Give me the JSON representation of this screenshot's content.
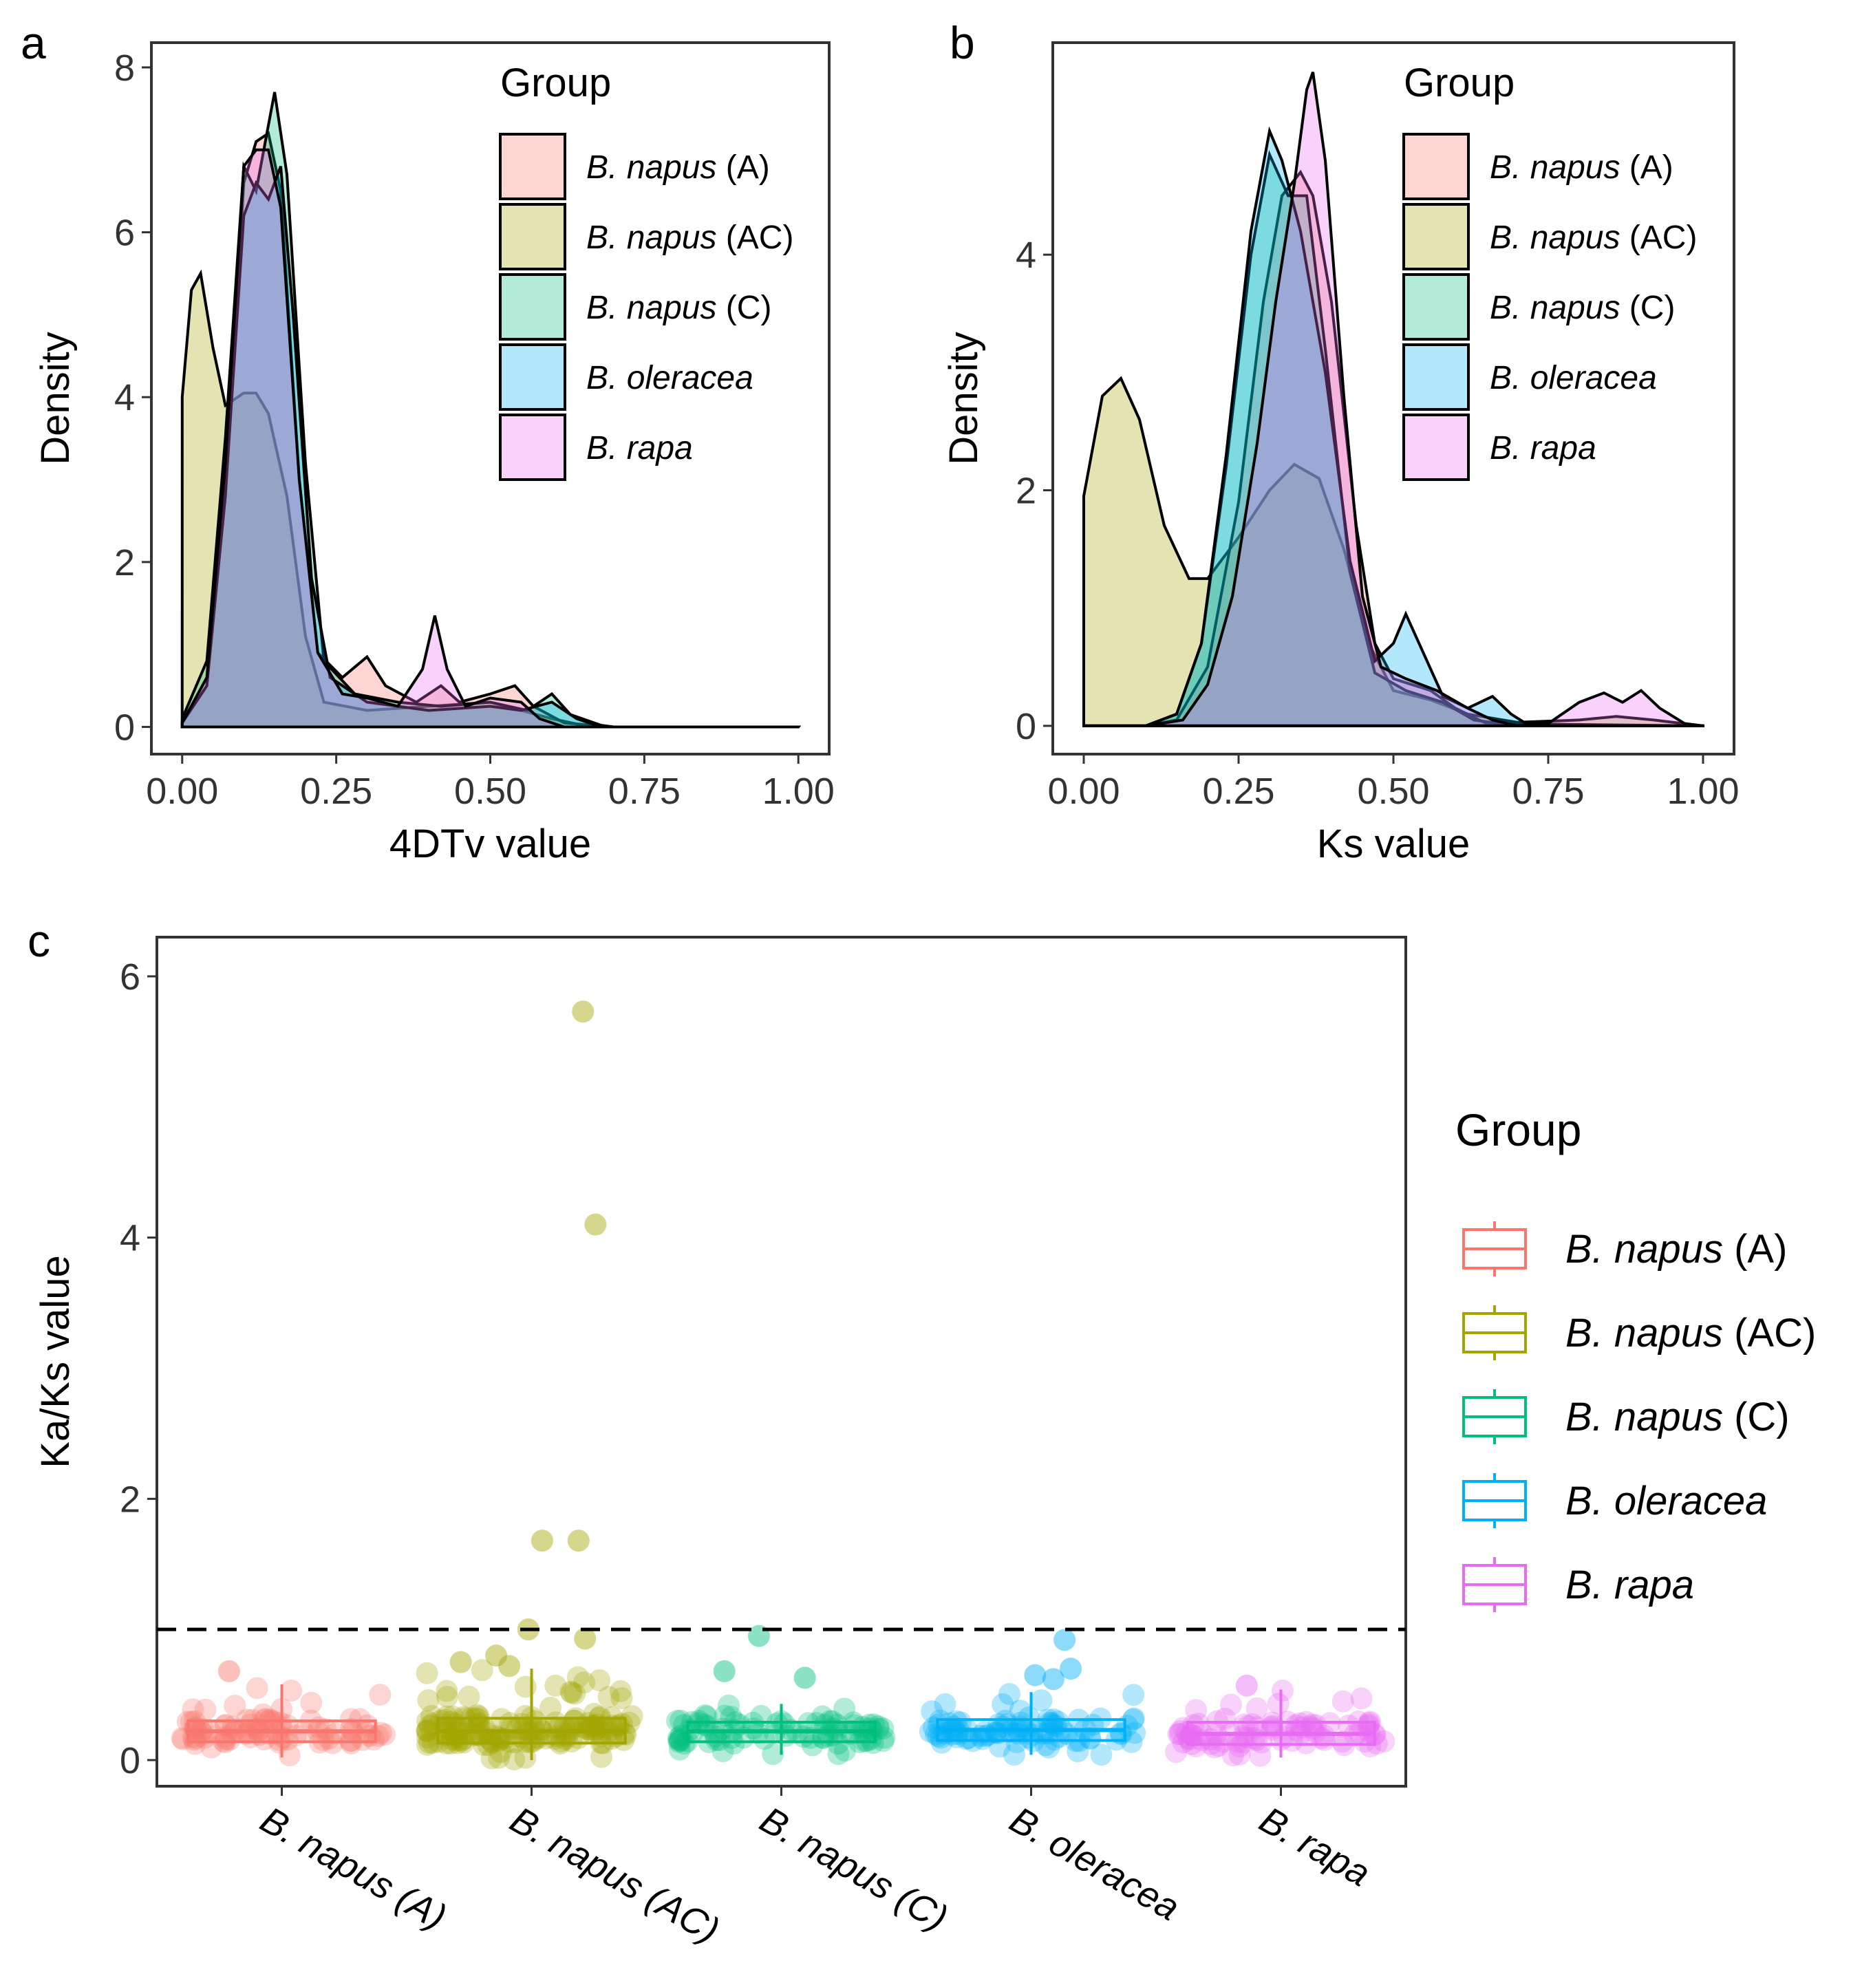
{
  "colors": {
    "B. napus (A)": "#F8766D",
    "B. napus (AC)": "#A3A500",
    "B. napus (C)": "#00BF7D",
    "B. oleracea": "#00B0F6",
    "B. rapa": "#E76BF3"
  },
  "panel_labels": {
    "a": "a",
    "b": "b",
    "c": "c"
  },
  "legend": {
    "title": "Group",
    "items": [
      {
        "group": "B. napus (A)",
        "genus": "B.",
        "species": "napus",
        "suffix": " (A)"
      },
      {
        "group": "B. napus (AC)",
        "genus": "B.",
        "species": "napus",
        "suffix": " (AC)"
      },
      {
        "group": "B. napus (C)",
        "genus": "B.",
        "species": "napus",
        "suffix": " (C)"
      },
      {
        "group": "B. oleracea",
        "genus": "B.",
        "species": "oleracea",
        "suffix": ""
      },
      {
        "group": "B. rapa",
        "genus": "B.",
        "species": "rapa",
        "suffix": ""
      }
    ]
  },
  "chart_data": [
    {
      "id": "a",
      "type": "area",
      "subtype": "density",
      "xlabel": "4DTv value",
      "ylabel": "Density",
      "xlim": [
        0,
        1
      ],
      "ylim": [
        0,
        8
      ],
      "xticks": [
        "0.00",
        "0.25",
        "0.50",
        "0.75",
        "1.00"
      ],
      "yticks": [
        "0",
        "2",
        "4",
        "6",
        "8"
      ],
      "legend": "top-right",
      "series": [
        {
          "name": "B. napus (AC)",
          "points": [
            [
              0,
              4.0
            ],
            [
              0.015,
              5.3
            ],
            [
              0.03,
              5.5
            ],
            [
              0.05,
              4.6
            ],
            [
              0.07,
              3.9
            ],
            [
              0.1,
              4.05
            ],
            [
              0.12,
              4.05
            ],
            [
              0.14,
              3.8
            ],
            [
              0.17,
              2.8
            ],
            [
              0.2,
              1.1
            ],
            [
              0.23,
              0.3
            ],
            [
              0.3,
              0.2
            ],
            [
              0.4,
              0.25
            ],
            [
              0.5,
              0.3
            ],
            [
              0.6,
              0.1
            ],
            [
              0.65,
              0.02
            ],
            [
              0.7,
              0
            ],
            [
              1.0,
              0
            ]
          ]
        },
        {
          "name": "B. napus (A)",
          "points": [
            [
              0,
              0.05
            ],
            [
              0.04,
              0.5
            ],
            [
              0.07,
              2.8
            ],
            [
              0.1,
              6.6
            ],
            [
              0.12,
              7.1
            ],
            [
              0.14,
              7.2
            ],
            [
              0.16,
              6.5
            ],
            [
              0.19,
              3.0
            ],
            [
              0.22,
              0.9
            ],
            [
              0.26,
              0.6
            ],
            [
              0.3,
              0.85
            ],
            [
              0.33,
              0.5
            ],
            [
              0.38,
              0.3
            ],
            [
              0.42,
              0.5
            ],
            [
              0.45,
              0.3
            ],
            [
              0.5,
              0.4
            ],
            [
              0.54,
              0.5
            ],
            [
              0.57,
              0.25
            ],
            [
              0.62,
              0.05
            ],
            [
              0.7,
              0
            ],
            [
              1.0,
              0
            ]
          ]
        },
        {
          "name": "B. napus (C)",
          "points": [
            [
              0,
              0.1
            ],
            [
              0.04,
              0.8
            ],
            [
              0.07,
              3.5
            ],
            [
              0.1,
              6.8
            ],
            [
              0.12,
              6.5
            ],
            [
              0.14,
              7.3
            ],
            [
              0.15,
              7.7
            ],
            [
              0.17,
              6.7
            ],
            [
              0.2,
              3.2
            ],
            [
              0.23,
              0.8
            ],
            [
              0.28,
              0.4
            ],
            [
              0.35,
              0.3
            ],
            [
              0.42,
              0.25
            ],
            [
              0.5,
              0.3
            ],
            [
              0.56,
              0.2
            ],
            [
              0.6,
              0.4
            ],
            [
              0.63,
              0.15
            ],
            [
              0.68,
              0.02
            ],
            [
              0.7,
              0
            ],
            [
              1.0,
              0
            ]
          ]
        },
        {
          "name": "B. oleracea",
          "points": [
            [
              0,
              0.05
            ],
            [
              0.04,
              0.5
            ],
            [
              0.07,
              2.8
            ],
            [
              0.1,
              6.2
            ],
            [
              0.12,
              6.6
            ],
            [
              0.14,
              6.4
            ],
            [
              0.16,
              6.8
            ],
            [
              0.18,
              5.0
            ],
            [
              0.21,
              1.8
            ],
            [
              0.24,
              0.6
            ],
            [
              0.3,
              0.3
            ],
            [
              0.4,
              0.2
            ],
            [
              0.5,
              0.25
            ],
            [
              0.55,
              0.2
            ],
            [
              0.6,
              0.3
            ],
            [
              0.64,
              0.1
            ],
            [
              0.68,
              0
            ],
            [
              1.0,
              0
            ]
          ]
        },
        {
          "name": "B. rapa",
          "points": [
            [
              0,
              0.05
            ],
            [
              0.04,
              0.6
            ],
            [
              0.07,
              3.2
            ],
            [
              0.1,
              6.8
            ],
            [
              0.12,
              7.0
            ],
            [
              0.14,
              7.0
            ],
            [
              0.16,
              6.3
            ],
            [
              0.19,
              3.0
            ],
            [
              0.22,
              0.9
            ],
            [
              0.26,
              0.4
            ],
            [
              0.3,
              0.35
            ],
            [
              0.35,
              0.25
            ],
            [
              0.39,
              0.7
            ],
            [
              0.41,
              1.35
            ],
            [
              0.43,
              0.7
            ],
            [
              0.46,
              0.25
            ],
            [
              0.5,
              0.35
            ],
            [
              0.55,
              0.3
            ],
            [
              0.58,
              0.1
            ],
            [
              0.62,
              0
            ],
            [
              1.0,
              0
            ]
          ]
        }
      ]
    },
    {
      "id": "b",
      "type": "area",
      "subtype": "density",
      "xlabel": "Ks value",
      "ylabel": "Density",
      "xlim": [
        0,
        1
      ],
      "ylim": [
        0,
        5.8
      ],
      "xticks": [
        "0.00",
        "0.25",
        "0.50",
        "0.75",
        "1.00"
      ],
      "yticks": [
        "0",
        "2",
        "4"
      ],
      "ytick_values": [
        0,
        2,
        4
      ],
      "legend": "top-right",
      "series": [
        {
          "name": "B. napus (AC)",
          "points": [
            [
              0,
              1.95
            ],
            [
              0.03,
              2.8
            ],
            [
              0.06,
              2.95
            ],
            [
              0.09,
              2.6
            ],
            [
              0.13,
              1.7
            ],
            [
              0.17,
              1.25
            ],
            [
              0.2,
              1.25
            ],
            [
              0.25,
              1.6
            ],
            [
              0.3,
              2.0
            ],
            [
              0.34,
              2.22
            ],
            [
              0.38,
              2.1
            ],
            [
              0.42,
              1.5
            ],
            [
              0.46,
              0.7
            ],
            [
              0.5,
              0.3
            ],
            [
              0.56,
              0.22
            ],
            [
              0.62,
              0.1
            ],
            [
              0.7,
              0.03
            ],
            [
              0.8,
              0.05
            ],
            [
              0.86,
              0.08
            ],
            [
              0.92,
              0.05
            ],
            [
              1.0,
              0
            ]
          ]
        },
        {
          "name": "B. napus (A)",
          "points": [
            [
              0,
              0
            ],
            [
              0.1,
              0
            ],
            [
              0.15,
              0.05
            ],
            [
              0.2,
              0.5
            ],
            [
              0.25,
              1.9
            ],
            [
              0.29,
              3.6
            ],
            [
              0.32,
              4.5
            ],
            [
              0.35,
              4.7
            ],
            [
              0.37,
              4.5
            ],
            [
              0.4,
              3.6
            ],
            [
              0.44,
              1.7
            ],
            [
              0.47,
              0.7
            ],
            [
              0.5,
              0.4
            ],
            [
              0.56,
              0.3
            ],
            [
              0.6,
              0.15
            ],
            [
              0.65,
              0.02
            ],
            [
              1.0,
              0
            ]
          ]
        },
        {
          "name": "B. napus (C)",
          "points": [
            [
              0,
              0
            ],
            [
              0.1,
              0
            ],
            [
              0.15,
              0.1
            ],
            [
              0.19,
              0.7
            ],
            [
              0.23,
              2.2
            ],
            [
              0.27,
              4.0
            ],
            [
              0.3,
              4.85
            ],
            [
              0.33,
              4.5
            ],
            [
              0.36,
              4.5
            ],
            [
              0.39,
              3.2
            ],
            [
              0.43,
              1.3
            ],
            [
              0.47,
              0.45
            ],
            [
              0.52,
              0.3
            ],
            [
              0.58,
              0.2
            ],
            [
              0.63,
              0.05
            ],
            [
              0.7,
              0
            ],
            [
              1.0,
              0
            ]
          ]
        },
        {
          "name": "B. oleracea",
          "points": [
            [
              0,
              0
            ],
            [
              0.1,
              0
            ],
            [
              0.15,
              0.1
            ],
            [
              0.19,
              0.7
            ],
            [
              0.23,
              2.3
            ],
            [
              0.27,
              4.2
            ],
            [
              0.3,
              5.05
            ],
            [
              0.32,
              4.8
            ],
            [
              0.35,
              4.2
            ],
            [
              0.39,
              3.0
            ],
            [
              0.43,
              1.4
            ],
            [
              0.47,
              0.55
            ],
            [
              0.5,
              0.7
            ],
            [
              0.52,
              0.95
            ],
            [
              0.55,
              0.6
            ],
            [
              0.58,
              0.25
            ],
            [
              0.62,
              0.15
            ],
            [
              0.66,
              0.25
            ],
            [
              0.69,
              0.1
            ],
            [
              0.72,
              0
            ],
            [
              1.0,
              0
            ]
          ]
        },
        {
          "name": "B. rapa",
          "points": [
            [
              0,
              0
            ],
            [
              0.1,
              0
            ],
            [
              0.16,
              0.05
            ],
            [
              0.2,
              0.35
            ],
            [
              0.24,
              1.1
            ],
            [
              0.28,
              2.4
            ],
            [
              0.31,
              3.6
            ],
            [
              0.34,
              4.6
            ],
            [
              0.36,
              5.4
            ],
            [
              0.37,
              5.55
            ],
            [
              0.39,
              4.8
            ],
            [
              0.42,
              2.8
            ],
            [
              0.45,
              1.1
            ],
            [
              0.48,
              0.5
            ],
            [
              0.52,
              0.4
            ],
            [
              0.57,
              0.3
            ],
            [
              0.62,
              0.15
            ],
            [
              0.66,
              0.05
            ],
            [
              0.7,
              0
            ],
            [
              0.75,
              0.02
            ],
            [
              0.8,
              0.2
            ],
            [
              0.84,
              0.28
            ],
            [
              0.87,
              0.2
            ],
            [
              0.9,
              0.3
            ],
            [
              0.93,
              0.15
            ],
            [
              0.97,
              0.02
            ],
            [
              1.0,
              0
            ]
          ]
        }
      ]
    },
    {
      "id": "c",
      "type": "box",
      "xlabel": "",
      "ylabel": "Ka/Ks value",
      "ylim": [
        -0.2,
        6.3
      ],
      "yticks": [
        "0",
        "2",
        "4",
        "6"
      ],
      "ytick_values": [
        0,
        2,
        4,
        6
      ],
      "reference_line": {
        "y": 1.0,
        "style": "dashed"
      },
      "categories": [
        "B. napus (A)",
        "B. napus (AC)",
        "B. napus (C)",
        "B. oleracea",
        "B. rapa"
      ],
      "boxes": [
        {
          "group": "B. napus (A)",
          "q1": 0.14,
          "median": 0.22,
          "q3": 0.3,
          "whisker_low": 0.02,
          "whisker_high": 0.58,
          "outliers": [
            0.68
          ]
        },
        {
          "group": "B. napus (AC)",
          "q1": 0.13,
          "median": 0.22,
          "q3": 0.32,
          "whisker_low": 0.0,
          "whisker_high": 0.7,
          "outliers": [
            0.72,
            0.75,
            0.8,
            0.93,
            1.0,
            1.68,
            1.68,
            4.1,
            5.73
          ]
        },
        {
          "group": "B. napus (C)",
          "q1": 0.14,
          "median": 0.22,
          "q3": 0.29,
          "whisker_low": 0.04,
          "whisker_high": 0.43,
          "outliers": [
            0.63,
            0.68,
            0.95
          ]
        },
        {
          "group": "B. oleracea",
          "q1": 0.15,
          "median": 0.23,
          "q3": 0.31,
          "whisker_low": 0.04,
          "whisker_high": 0.52,
          "outliers": [
            0.62,
            0.65,
            0.7,
            0.92
          ]
        },
        {
          "group": "B. rapa",
          "q1": 0.12,
          "median": 0.2,
          "q3": 0.29,
          "whisker_low": 0.02,
          "whisker_high": 0.54,
          "outliers": [
            0.57
          ]
        }
      ],
      "legend": "right"
    }
  ]
}
